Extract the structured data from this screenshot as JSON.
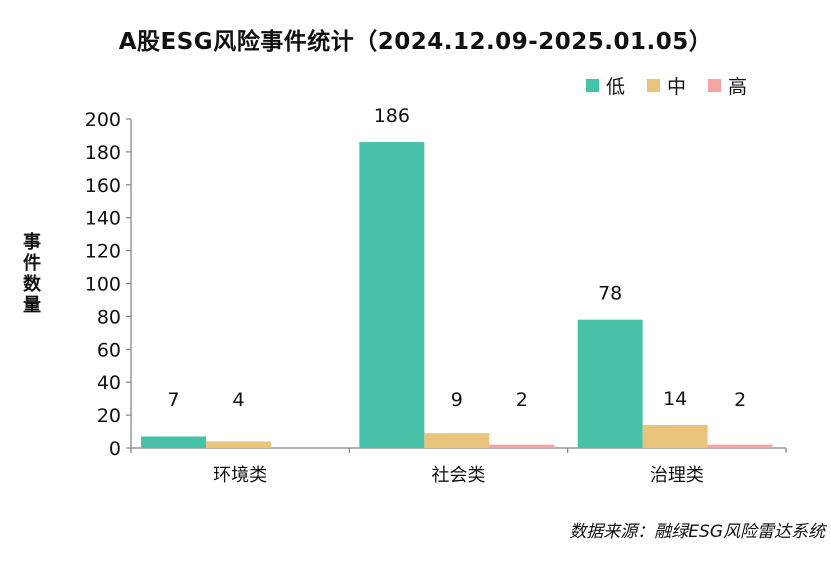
{
  "chart_data": {
    "type": "bar",
    "title": "A股ESG风险事件统计（2024.12.09-2025.01.05）",
    "ylabel": "事件数量",
    "xlabel": "",
    "categories": [
      "环境类",
      "社会类",
      "治理类"
    ],
    "series": [
      {
        "name": "低",
        "color": "#48c1a9",
        "values": [
          7,
          186,
          78
        ]
      },
      {
        "name": "中",
        "color": "#e9c47c",
        "values": [
          4,
          9,
          14
        ]
      },
      {
        "name": "高",
        "color": "#f5a3a3",
        "values": [
          null,
          2,
          2
        ]
      }
    ],
    "ylim": [
      0,
      200
    ],
    "yticks": [
      0,
      20,
      40,
      60,
      80,
      100,
      120,
      140,
      160,
      180,
      200
    ],
    "grid": false,
    "legend_position": "top-right",
    "data_labels": true
  },
  "source_note": "数据来源：融绿ESG风险雷达系统"
}
